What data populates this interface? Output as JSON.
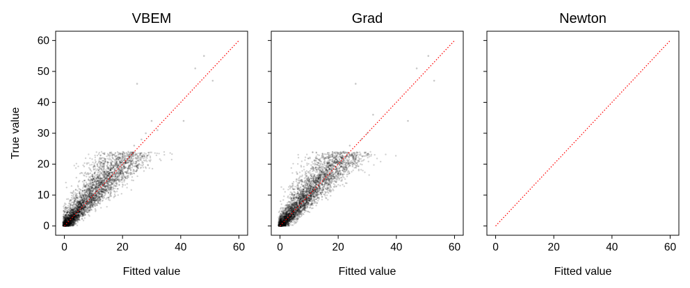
{
  "chart_data": [
    {
      "type": "scatter",
      "title": "VBEM",
      "xlabel": "Fitted value",
      "ylabel": "True value",
      "xlim": [
        -3,
        63
      ],
      "ylim": [
        -3,
        63
      ],
      "xticks": [
        "0",
        "20",
        "40",
        "60"
      ],
      "yticks": [
        "0",
        "10",
        "20",
        "30",
        "40",
        "50",
        "60"
      ],
      "show_points": true,
      "series": [
        {
          "x": [
            0.5,
            1.2,
            2.0,
            3.1,
            4.0,
            5.2,
            6.0,
            7.5,
            8.1,
            9.0,
            10.2,
            11.5,
            12.0,
            13.4,
            14.8,
            16.0,
            17.5,
            19.0,
            20.5,
            22.0,
            24.0,
            25.0,
            26.5,
            28.0,
            30.0,
            32.0,
            41.0,
            45.0,
            48.0,
            51.0
          ],
          "y": [
            0.3,
            1.5,
            2.2,
            4.0,
            3.5,
            6.0,
            5.0,
            8.0,
            9.5,
            8.0,
            12.0,
            11.0,
            14.0,
            13.0,
            16.0,
            18.0,
            17.0,
            22.0,
            20.0,
            24.0,
            26.0,
            46.0,
            28.0,
            30.0,
            34.0,
            31.0,
            34.0,
            51.0,
            55.0,
            47.0
          ]
        },
        {
          "name": "y = x",
          "x": [
            0,
            60
          ],
          "y": [
            0,
            60
          ],
          "color": "#ff0000",
          "style": "dotted"
        }
      ]
    },
    {
      "type": "scatter",
      "title": "Grad",
      "xlabel": "Fitted value",
      "ylabel": "",
      "xlim": [
        -3,
        63
      ],
      "ylim": [
        -3,
        63
      ],
      "xticks": [
        "0",
        "20",
        "40",
        "60"
      ],
      "yticks": [
        "",
        "",
        "",
        "",
        "",
        "",
        ""
      ],
      "show_points": true,
      "series": [
        {
          "x": [
            0.5,
            1.2,
            2.0,
            3.1,
            4.0,
            5.2,
            6.0,
            7.5,
            8.1,
            9.0,
            10.2,
            11.5,
            12.0,
            13.4,
            14.8,
            16.0,
            17.5,
            19.0,
            20.5,
            22.0,
            24.0,
            26.0,
            28.0,
            30.0,
            32.0,
            44.0,
            47.0,
            51.0,
            53.0
          ],
          "y": [
            0.3,
            1.5,
            2.2,
            4.0,
            3.5,
            6.0,
            5.0,
            8.0,
            9.5,
            8.0,
            12.0,
            11.0,
            14.0,
            13.0,
            16.0,
            18.0,
            17.0,
            22.0,
            20.0,
            24.0,
            26.0,
            46.0,
            28.0,
            30.0,
            36.0,
            34.0,
            51.0,
            55.0,
            47.0
          ]
        },
        {
          "name": "y = x",
          "x": [
            0,
            60
          ],
          "y": [
            0,
            60
          ],
          "color": "#ff0000",
          "style": "dotted"
        }
      ]
    },
    {
      "type": "scatter",
      "title": "Newton",
      "xlabel": "Fitted value",
      "ylabel": "",
      "xlim": [
        -3,
        63
      ],
      "ylim": [
        -3,
        63
      ],
      "xticks": [
        "0",
        "20",
        "40",
        "60"
      ],
      "yticks": [
        "",
        "",
        "",
        "",
        "",
        "",
        ""
      ],
      "show_points": false,
      "series": [
        {
          "name": "y = x",
          "x": [
            0,
            60
          ],
          "y": [
            0,
            60
          ],
          "color": "#ff0000",
          "style": "dotted"
        }
      ]
    }
  ]
}
